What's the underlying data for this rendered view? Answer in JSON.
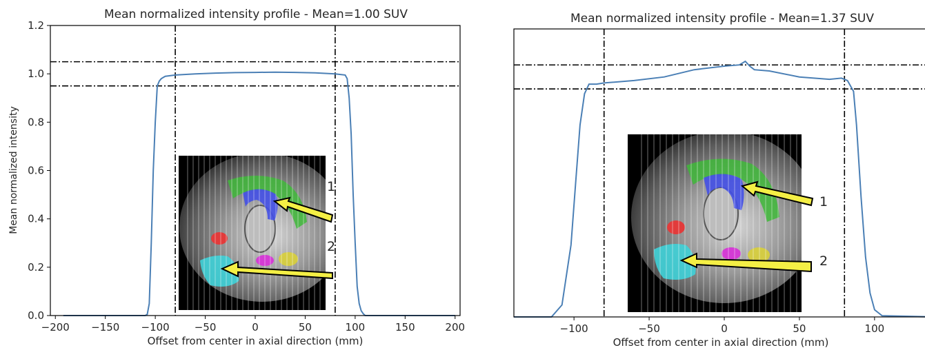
{
  "chart_data": [
    {
      "type": "line",
      "title": "Mean normalized intensity profile - Mean=1.00 SUV",
      "xlabel": "Offset from center in axial direction (mm)",
      "ylabel": "Mean normalized intensity",
      "xlim": [
        -205,
        205
      ],
      "ylim": [
        0,
        1.2
      ],
      "xticks": [
        -200,
        -150,
        -100,
        -50,
        0,
        50,
        100,
        150,
        200
      ],
      "xtick_labels": [
        "−200",
        "−150",
        "−100",
        "−50",
        "0",
        "50",
        "100",
        "150",
        "200"
      ],
      "yticks": [
        0.0,
        0.2,
        0.4,
        0.6,
        0.8,
        1.0,
        1.2
      ],
      "ytick_labels": [
        "0.0",
        "0.2",
        "0.4",
        "0.6",
        "0.8",
        "1.0",
        "1.2"
      ],
      "vlines": [
        -80,
        80
      ],
      "hlines": [
        0.95,
        1.05
      ],
      "line_color": "#4a7fb5",
      "series": [
        {
          "x": [
            -192,
            -110,
            -108,
            -106,
            -104,
            -102,
            -100,
            -98,
            -96,
            -94,
            -92,
            -90,
            -80,
            -60,
            -40,
            -20,
            0,
            20,
            40,
            60,
            80,
            90,
            92,
            94,
            96,
            98,
            100,
            102,
            104,
            106,
            108,
            110,
            200
          ],
          "y": [
            0.0,
            0.0,
            0.005,
            0.05,
            0.3,
            0.6,
            0.8,
            0.95,
            0.97,
            0.98,
            0.985,
            0.99,
            0.995,
            1.0,
            1.003,
            1.005,
            1.006,
            1.007,
            1.006,
            1.004,
            1.0,
            0.995,
            0.98,
            0.9,
            0.75,
            0.5,
            0.3,
            0.12,
            0.05,
            0.02,
            0.008,
            0.0,
            0.0
          ]
        }
      ],
      "inset_labels": [
        "1",
        "2"
      ]
    },
    {
      "type": "line",
      "title": "Mean normalized intensity profile - Mean=1.37 SUV",
      "xlabel": "Offset from center in axial direction (mm)",
      "ylabel": "",
      "xlim": [
        -140,
        140
      ],
      "ylim": [
        0,
        1.2
      ],
      "xticks": [
        -100,
        -50,
        0,
        50,
        100
      ],
      "xtick_labels": [
        "−100",
        "−50",
        "0",
        "50",
        "100"
      ],
      "vlines": [
        -80,
        80
      ],
      "hlines": [
        0.95,
        1.05
      ],
      "line_color": "#4a7fb5",
      "series": [
        {
          "x": [
            -140,
            -115,
            -108,
            -102,
            -99,
            -96,
            -93,
            -90,
            -85,
            -80,
            -60,
            -40,
            -20,
            0,
            10,
            14,
            17,
            20,
            30,
            50,
            70,
            78,
            82,
            86,
            88,
            91,
            94,
            97,
            100,
            105,
            140
          ],
          "y": [
            0.0,
            0.0,
            0.05,
            0.3,
            0.55,
            0.8,
            0.93,
            0.97,
            0.97,
            0.975,
            0.985,
            1.0,
            1.03,
            1.045,
            1.05,
            1.065,
            1.045,
            1.03,
            1.025,
            1.0,
            0.99,
            0.995,
            0.985,
            0.94,
            0.8,
            0.5,
            0.25,
            0.1,
            0.03,
            0.005,
            0.0
          ]
        }
      ],
      "inset_labels": [
        "1",
        "2"
      ]
    }
  ]
}
